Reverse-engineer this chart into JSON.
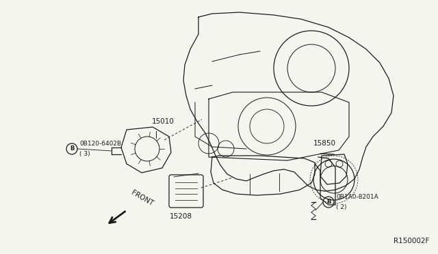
{
  "bg_color": "#f5f5f0",
  "fig_width": 6.4,
  "fig_height": 3.72,
  "dpi": 100,
  "diagram_ref": "R150002F",
  "line_color": "#1a1a1a",
  "text_color": "#1a1a1a",
  "label_15010": "15010",
  "label_15208": "15208",
  "label_15850": "15850",
  "bolt_left_text": "0B120-6402B",
  "bolt_left_sub": "( 3)",
  "bolt_right_text": "0B1A0-8201A",
  "bolt_right_sub": "( 2)",
  "front_text": "FRONT",
  "ref_text": "R150002F"
}
